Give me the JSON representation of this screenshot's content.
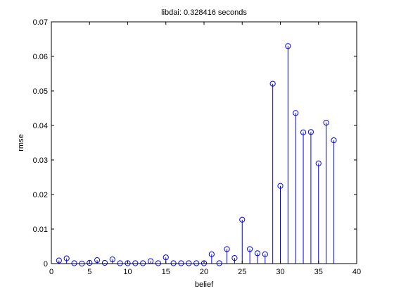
{
  "chart_data": {
    "type": "stem",
    "title": "libdai: 0.328416 seconds",
    "xlabel": "belief",
    "ylabel": "rmse",
    "xlim": [
      0,
      40
    ],
    "ylim": [
      0,
      0.07
    ],
    "xticks": [
      0,
      5,
      10,
      15,
      20,
      25,
      30,
      35,
      40
    ],
    "xtick_labels": [
      "0",
      "5",
      "10",
      "15",
      "20",
      "25",
      "30",
      "35",
      "40"
    ],
    "yticks": [
      0,
      0.01,
      0.02,
      0.03,
      0.04,
      0.05,
      0.06,
      0.07
    ],
    "ytick_labels": [
      "0",
      "0.01",
      "0.02",
      "0.03",
      "0.04",
      "0.05",
      "0.06",
      "0.07"
    ],
    "grid": false,
    "color": "#0000ff",
    "marker": "circle",
    "x": [
      1,
      2,
      3,
      4,
      5,
      6,
      7,
      8,
      9,
      10,
      11,
      12,
      13,
      14,
      15,
      16,
      17,
      18,
      19,
      20,
      21,
      22,
      23,
      24,
      25,
      26,
      27,
      28,
      29,
      30,
      31,
      32,
      33,
      34,
      35,
      36,
      37
    ],
    "y": [
      0.0009,
      0.0015,
      0.0001,
      0.0,
      0.0002,
      0.001,
      0.0002,
      0.0012,
      0.0001,
      0.0001,
      0.0001,
      0.0001,
      0.0007,
      0.0001,
      0.0018,
      0.0001,
      0.0001,
      0.0001,
      0.0001,
      0.0001,
      0.0027,
      0.0001,
      0.0042,
      0.0016,
      0.0127,
      0.0042,
      0.003,
      0.0027,
      0.0521,
      0.0225,
      0.063,
      0.0436,
      0.038,
      0.0381,
      0.029,
      0.0408,
      0.0357
    ]
  }
}
